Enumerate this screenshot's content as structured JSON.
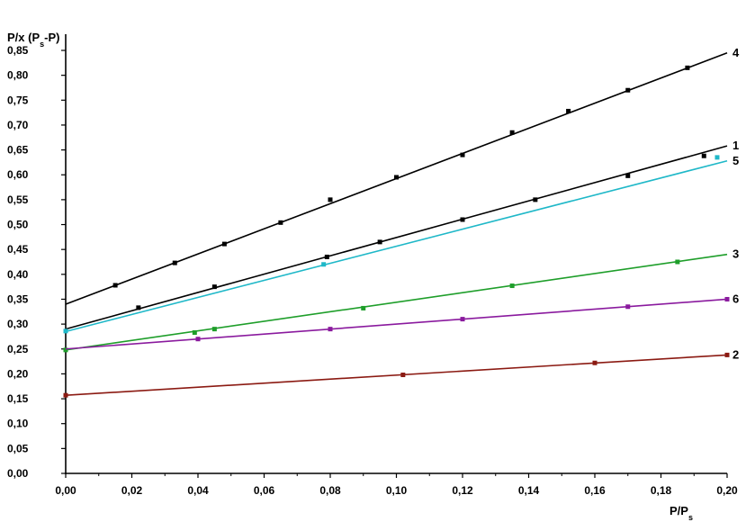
{
  "chart_data": {
    "type": "line",
    "title": "",
    "ylabel": {
      "main": "P/x (P",
      "sub": "s",
      "tail": "-P)"
    },
    "xlabel": {
      "main": "P/P",
      "sub": "s"
    },
    "xlim": [
      0.0,
      0.2
    ],
    "ylim": [
      0.0,
      0.88
    ],
    "x_ticks": [
      "0,00",
      "0,02",
      "0,04",
      "0,06",
      "0,08",
      "0,10",
      "0,12",
      "0,14",
      "0,16",
      "0,18",
      "0,20"
    ],
    "y_ticks": [
      "0,00",
      "0,05",
      "0,10",
      "0,15",
      "0,20",
      "0,25",
      "0,30",
      "0,35",
      "0,40",
      "0,45",
      "0,50",
      "0,55",
      "0,60",
      "0,65",
      "0,70",
      "0,75",
      "0,80",
      "0,85"
    ],
    "grid": false,
    "series": [
      {
        "name": "4",
        "color": "#000000",
        "points": [
          [
            0.0,
            0.34
          ],
          [
            0.2,
            0.845
          ]
        ],
        "markers": [
          [
            0.015,
            0.378
          ],
          [
            0.033,
            0.423
          ],
          [
            0.048,
            0.461
          ],
          [
            0.065,
            0.504
          ],
          [
            0.08,
            0.55
          ],
          [
            0.1,
            0.595
          ],
          [
            0.12,
            0.64
          ],
          [
            0.135,
            0.685
          ],
          [
            0.152,
            0.728
          ],
          [
            0.17,
            0.77
          ],
          [
            0.188,
            0.815
          ]
        ]
      },
      {
        "name": "1",
        "color": "#000000",
        "points": [
          [
            0.0,
            0.29
          ],
          [
            0.2,
            0.658
          ]
        ],
        "markers": [
          [
            0.022,
            0.333
          ],
          [
            0.045,
            0.375
          ],
          [
            0.079,
            0.435
          ],
          [
            0.095,
            0.465
          ],
          [
            0.12,
            0.51
          ],
          [
            0.142,
            0.55
          ],
          [
            0.17,
            0.598
          ],
          [
            0.193,
            0.638
          ]
        ]
      },
      {
        "name": "5",
        "color": "#1fb8c8",
        "points": [
          [
            0.0,
            0.285
          ],
          [
            0.2,
            0.628
          ]
        ],
        "markers": [
          [
            0.0,
            0.286
          ],
          [
            0.078,
            0.42
          ],
          [
            0.197,
            0.635
          ]
        ]
      },
      {
        "name": "3",
        "color": "#1e9e2a",
        "points": [
          [
            0.0,
            0.248
          ],
          [
            0.2,
            0.44
          ]
        ],
        "markers": [
          [
            0.0,
            0.248
          ],
          [
            0.039,
            0.283
          ],
          [
            0.045,
            0.29
          ],
          [
            0.09,
            0.332
          ],
          [
            0.135,
            0.377
          ],
          [
            0.185,
            0.425
          ]
        ]
      },
      {
        "name": "6",
        "color": "#8a1a9e",
        "points": [
          [
            0.0,
            0.25
          ],
          [
            0.2,
            0.35
          ]
        ],
        "markers": [
          [
            0.04,
            0.27
          ],
          [
            0.08,
            0.29
          ],
          [
            0.12,
            0.31
          ],
          [
            0.17,
            0.335
          ],
          [
            0.2,
            0.35
          ]
        ]
      },
      {
        "name": "2",
        "color": "#8b1a12",
        "points": [
          [
            0.0,
            0.157
          ],
          [
            0.2,
            0.238
          ]
        ],
        "markers": [
          [
            0.0,
            0.157
          ],
          [
            0.102,
            0.198
          ],
          [
            0.16,
            0.222
          ],
          [
            0.2,
            0.238
          ]
        ]
      }
    ]
  }
}
